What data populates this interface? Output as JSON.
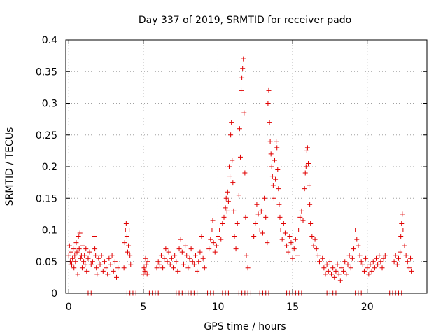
{
  "chart_data": {
    "type": "scatter",
    "title": "Day 337 of 2019, SRMTID for receiver pado",
    "xlabel": "GPS time / hours",
    "ylabel": "SRMTID / TECUs",
    "xlim": [
      -0.2,
      24
    ],
    "ylim": [
      0,
      0.4
    ],
    "x_ticks": [
      0,
      5,
      10,
      15,
      20
    ],
    "x_tick_labels": [
      "0",
      "5",
      "10",
      "15",
      "20"
    ],
    "y_ticks": [
      0,
      0.05,
      0.1,
      0.15,
      0.2,
      0.25,
      0.3,
      0.35,
      0.4
    ],
    "y_tick_labels": [
      "0",
      "0.05",
      "0.1",
      "0.15",
      "0.2",
      "0.25",
      "0.3",
      "0.35",
      "0.4"
    ],
    "grid": true,
    "marker": "+",
    "color": "#e00000",
    "series": [
      {
        "name": "SRMTID",
        "points": [
          [
            0.0,
            0.06
          ],
          [
            0.05,
            0.075
          ],
          [
            0.1,
            0.05
          ],
          [
            0.15,
            0.065
          ],
          [
            0.2,
            0.045
          ],
          [
            0.25,
            0.055
          ],
          [
            0.3,
            0.07
          ],
          [
            0.35,
            0.04
          ],
          [
            0.4,
            0.06
          ],
          [
            0.45,
            0.05
          ],
          [
            0.5,
            0.08
          ],
          [
            0.55,
            0.065
          ],
          [
            0.6,
            0.03
          ],
          [
            0.65,
            0.09
          ],
          [
            0.7,
            0.07
          ],
          [
            0.75,
            0.095
          ],
          [
            0.8,
            0.055
          ],
          [
            0.85,
            0.06
          ],
          [
            0.9,
            0.04
          ],
          [
            0.95,
            0.075
          ],
          [
            1.0,
            0.05
          ],
          [
            1.05,
            0.06
          ],
          [
            1.1,
            0.045
          ],
          [
            1.15,
            0.07
          ],
          [
            1.2,
            0.035
          ],
          [
            1.3,
            0.055
          ],
          [
            1.4,
            0.065
          ],
          [
            1.5,
            0.045
          ],
          [
            1.6,
            0.05
          ],
          [
            1.7,
            0.09
          ],
          [
            1.75,
            0.07
          ],
          [
            1.8,
            0.06
          ],
          [
            1.85,
            0.04
          ],
          [
            1.9,
            0.03
          ],
          [
            2.0,
            0.055
          ],
          [
            2.1,
            0.045
          ],
          [
            2.2,
            0.06
          ],
          [
            2.3,
            0.035
          ],
          [
            2.4,
            0.05
          ],
          [
            2.5,
            0.04
          ],
          [
            2.6,
            0.03
          ],
          [
            2.7,
            0.055
          ],
          [
            2.8,
            0.045
          ],
          [
            2.9,
            0.06
          ],
          [
            3.0,
            0.035
          ],
          [
            3.1,
            0.05
          ],
          [
            3.2,
            0.025
          ],
          [
            3.3,
            0.04
          ],
          [
            3.7,
            0.04
          ],
          [
            3.75,
            0.08
          ],
          [
            3.8,
            0.1
          ],
          [
            3.85,
            0.11
          ],
          [
            3.9,
            0.09
          ],
          [
            3.95,
            0.065
          ],
          [
            4.0,
            0.075
          ],
          [
            4.05,
            0.1
          ],
          [
            4.1,
            0.06
          ],
          [
            4.15,
            0.045
          ],
          [
            5.0,
            0.03
          ],
          [
            5.05,
            0.04
          ],
          [
            5.1,
            0.035
          ],
          [
            5.15,
            0.055
          ],
          [
            5.2,
            0.045
          ],
          [
            5.25,
            0.03
          ],
          [
            5.3,
            0.05
          ],
          [
            5.9,
            0.04
          ],
          [
            6.0,
            0.05
          ],
          [
            6.1,
            0.045
          ],
          [
            6.2,
            0.06
          ],
          [
            6.3,
            0.04
          ],
          [
            6.4,
            0.055
          ],
          [
            6.5,
            0.07
          ],
          [
            6.6,
            0.05
          ],
          [
            6.7,
            0.065
          ],
          [
            6.8,
            0.045
          ],
          [
            6.9,
            0.055
          ],
          [
            7.0,
            0.04
          ],
          [
            7.1,
            0.06
          ],
          [
            7.2,
            0.05
          ],
          [
            7.3,
            0.035
          ],
          [
            7.4,
            0.07
          ],
          [
            7.5,
            0.085
          ],
          [
            7.6,
            0.065
          ],
          [
            7.7,
            0.045
          ],
          [
            7.8,
            0.075
          ],
          [
            7.9,
            0.06
          ],
          [
            8.0,
            0.04
          ],
          [
            8.1,
            0.055
          ],
          [
            8.2,
            0.07
          ],
          [
            8.3,
            0.05
          ],
          [
            8.4,
            0.045
          ],
          [
            8.5,
            0.06
          ],
          [
            8.6,
            0.035
          ],
          [
            8.7,
            0.05
          ],
          [
            8.8,
            0.065
          ],
          [
            8.9,
            0.09
          ],
          [
            9.0,
            0.055
          ],
          [
            9.1,
            0.04
          ],
          [
            9.4,
            0.07
          ],
          [
            9.5,
            0.085
          ],
          [
            9.6,
            0.1
          ],
          [
            9.65,
            0.115
          ],
          [
            9.7,
            0.08
          ],
          [
            9.8,
            0.065
          ],
          [
            9.9,
            0.075
          ],
          [
            10.0,
            0.09
          ],
          [
            10.1,
            0.1
          ],
          [
            10.2,
            0.085
          ],
          [
            10.3,
            0.11
          ],
          [
            10.4,
            0.12
          ],
          [
            10.5,
            0.135
          ],
          [
            10.55,
            0.15
          ],
          [
            10.6,
            0.13
          ],
          [
            10.65,
            0.16
          ],
          [
            10.7,
            0.145
          ],
          [
            10.75,
            0.2
          ],
          [
            10.8,
            0.185
          ],
          [
            10.85,
            0.25
          ],
          [
            10.9,
            0.27
          ],
          [
            10.95,
            0.21
          ],
          [
            11.0,
            0.175
          ],
          [
            11.05,
            0.13
          ],
          [
            11.1,
            0.09
          ],
          [
            11.2,
            0.07
          ],
          [
            11.3,
            0.11
          ],
          [
            11.4,
            0.155
          ],
          [
            11.45,
            0.26
          ],
          [
            11.5,
            0.215
          ],
          [
            11.55,
            0.32
          ],
          [
            11.6,
            0.34
          ],
          [
            11.65,
            0.355
          ],
          [
            11.7,
            0.37
          ],
          [
            11.75,
            0.285
          ],
          [
            11.8,
            0.19
          ],
          [
            11.85,
            0.12
          ],
          [
            11.9,
            0.06
          ],
          [
            12.0,
            0.04
          ],
          [
            12.4,
            0.09
          ],
          [
            12.5,
            0.11
          ],
          [
            12.6,
            0.14
          ],
          [
            12.7,
            0.125
          ],
          [
            12.8,
            0.1
          ],
          [
            12.9,
            0.13
          ],
          [
            13.0,
            0.095
          ],
          [
            13.1,
            0.15
          ],
          [
            13.2,
            0.12
          ],
          [
            13.3,
            0.08
          ],
          [
            13.35,
            0.3
          ],
          [
            13.4,
            0.32
          ],
          [
            13.45,
            0.27
          ],
          [
            13.5,
            0.24
          ],
          [
            13.55,
            0.22
          ],
          [
            13.6,
            0.2
          ],
          [
            13.65,
            0.185
          ],
          [
            13.7,
            0.17
          ],
          [
            13.75,
            0.15
          ],
          [
            13.8,
            0.21
          ],
          [
            13.85,
            0.18
          ],
          [
            13.9,
            0.24
          ],
          [
            13.95,
            0.23
          ],
          [
            14.0,
            0.195
          ],
          [
            14.05,
            0.165
          ],
          [
            14.1,
            0.14
          ],
          [
            14.15,
            0.12
          ],
          [
            14.2,
            0.1
          ],
          [
            14.3,
            0.085
          ],
          [
            14.4,
            0.11
          ],
          [
            14.5,
            0.095
          ],
          [
            14.6,
            0.075
          ],
          [
            14.7,
            0.065
          ],
          [
            14.8,
            0.09
          ],
          [
            14.9,
            0.08
          ],
          [
            15.0,
            0.055
          ],
          [
            15.1,
            0.07
          ],
          [
            15.2,
            0.085
          ],
          [
            15.3,
            0.06
          ],
          [
            15.4,
            0.1
          ],
          [
            15.5,
            0.12
          ],
          [
            15.6,
            0.13
          ],
          [
            15.7,
            0.115
          ],
          [
            15.8,
            0.165
          ],
          [
            15.85,
            0.19
          ],
          [
            15.9,
            0.2
          ],
          [
            15.95,
            0.225
          ],
          [
            16.0,
            0.23
          ],
          [
            16.05,
            0.205
          ],
          [
            16.1,
            0.17
          ],
          [
            16.15,
            0.14
          ],
          [
            16.2,
            0.11
          ],
          [
            16.3,
            0.09
          ],
          [
            16.4,
            0.075
          ],
          [
            16.5,
            0.085
          ],
          [
            16.6,
            0.07
          ],
          [
            16.7,
            0.06
          ],
          [
            16.8,
            0.05
          ],
          [
            17.0,
            0.055
          ],
          [
            17.1,
            0.04
          ],
          [
            17.2,
            0.03
          ],
          [
            17.3,
            0.045
          ],
          [
            17.4,
            0.035
          ],
          [
            17.5,
            0.05
          ],
          [
            17.6,
            0.03
          ],
          [
            17.7,
            0.04
          ],
          [
            17.8,
            0.025
          ],
          [
            17.9,
            0.035
          ],
          [
            18.0,
            0.045
          ],
          [
            18.1,
            0.03
          ],
          [
            18.2,
            0.02
          ],
          [
            18.3,
            0.04
          ],
          [
            18.4,
            0.035
          ],
          [
            18.5,
            0.05
          ],
          [
            18.6,
            0.03
          ],
          [
            18.7,
            0.045
          ],
          [
            18.8,
            0.06
          ],
          [
            18.9,
            0.04
          ],
          [
            19.0,
            0.055
          ],
          [
            19.1,
            0.07
          ],
          [
            19.2,
            0.1
          ],
          [
            19.3,
            0.085
          ],
          [
            19.4,
            0.075
          ],
          [
            19.5,
            0.06
          ],
          [
            19.6,
            0.05
          ],
          [
            19.7,
            0.045
          ],
          [
            19.8,
            0.035
          ],
          [
            19.9,
            0.055
          ],
          [
            20.0,
            0.04
          ],
          [
            20.1,
            0.03
          ],
          [
            20.2,
            0.045
          ],
          [
            20.3,
            0.035
          ],
          [
            20.4,
            0.05
          ],
          [
            20.5,
            0.04
          ],
          [
            20.6,
            0.055
          ],
          [
            20.7,
            0.045
          ],
          [
            20.8,
            0.06
          ],
          [
            20.9,
            0.05
          ],
          [
            21.0,
            0.04
          ],
          [
            21.1,
            0.055
          ],
          [
            21.2,
            0.06
          ],
          [
            21.8,
            0.05
          ],
          [
            21.9,
            0.06
          ],
          [
            22.0,
            0.045
          ],
          [
            22.1,
            0.055
          ],
          [
            22.2,
            0.065
          ],
          [
            22.25,
            0.09
          ],
          [
            22.3,
            0.11
          ],
          [
            22.35,
            0.125
          ],
          [
            22.4,
            0.1
          ],
          [
            22.5,
            0.075
          ],
          [
            22.6,
            0.06
          ],
          [
            22.7,
            0.05
          ],
          [
            22.8,
            0.04
          ],
          [
            22.9,
            0.055
          ],
          [
            22.95,
            0.035
          ],
          [
            1.3,
            0.0
          ],
          [
            1.5,
            0.0
          ],
          [
            1.7,
            0.0
          ],
          [
            3.9,
            0.0
          ],
          [
            4.1,
            0.0
          ],
          [
            4.3,
            0.0
          ],
          [
            4.5,
            0.0
          ],
          [
            5.4,
            0.0
          ],
          [
            5.6,
            0.0
          ],
          [
            5.8,
            0.0
          ],
          [
            6.0,
            0.0
          ],
          [
            7.2,
            0.0
          ],
          [
            7.4,
            0.0
          ],
          [
            7.6,
            0.0
          ],
          [
            7.8,
            0.0
          ],
          [
            8.0,
            0.0
          ],
          [
            8.2,
            0.0
          ],
          [
            8.4,
            0.0
          ],
          [
            8.6,
            0.0
          ],
          [
            9.3,
            0.0
          ],
          [
            9.5,
            0.0
          ],
          [
            9.7,
            0.0
          ],
          [
            10.3,
            0.0
          ],
          [
            10.5,
            0.0
          ],
          [
            10.7,
            0.0
          ],
          [
            11.4,
            0.0
          ],
          [
            11.6,
            0.0
          ],
          [
            11.8,
            0.0
          ],
          [
            12.0,
            0.0
          ],
          [
            12.2,
            0.0
          ],
          [
            12.8,
            0.0
          ],
          [
            13.0,
            0.0
          ],
          [
            13.2,
            0.0
          ],
          [
            13.4,
            0.0
          ],
          [
            14.6,
            0.0
          ],
          [
            14.8,
            0.0
          ],
          [
            15.0,
            0.0
          ],
          [
            15.2,
            0.0
          ],
          [
            15.4,
            0.0
          ],
          [
            15.6,
            0.0
          ],
          [
            17.3,
            0.0
          ],
          [
            17.5,
            0.0
          ],
          [
            17.7,
            0.0
          ],
          [
            17.9,
            0.0
          ],
          [
            19.2,
            0.0
          ],
          [
            19.4,
            0.0
          ],
          [
            19.6,
            0.0
          ],
          [
            21.5,
            0.0
          ],
          [
            21.7,
            0.0
          ],
          [
            21.9,
            0.0
          ],
          [
            22.1,
            0.0
          ],
          [
            22.3,
            0.0
          ]
        ]
      }
    ]
  }
}
